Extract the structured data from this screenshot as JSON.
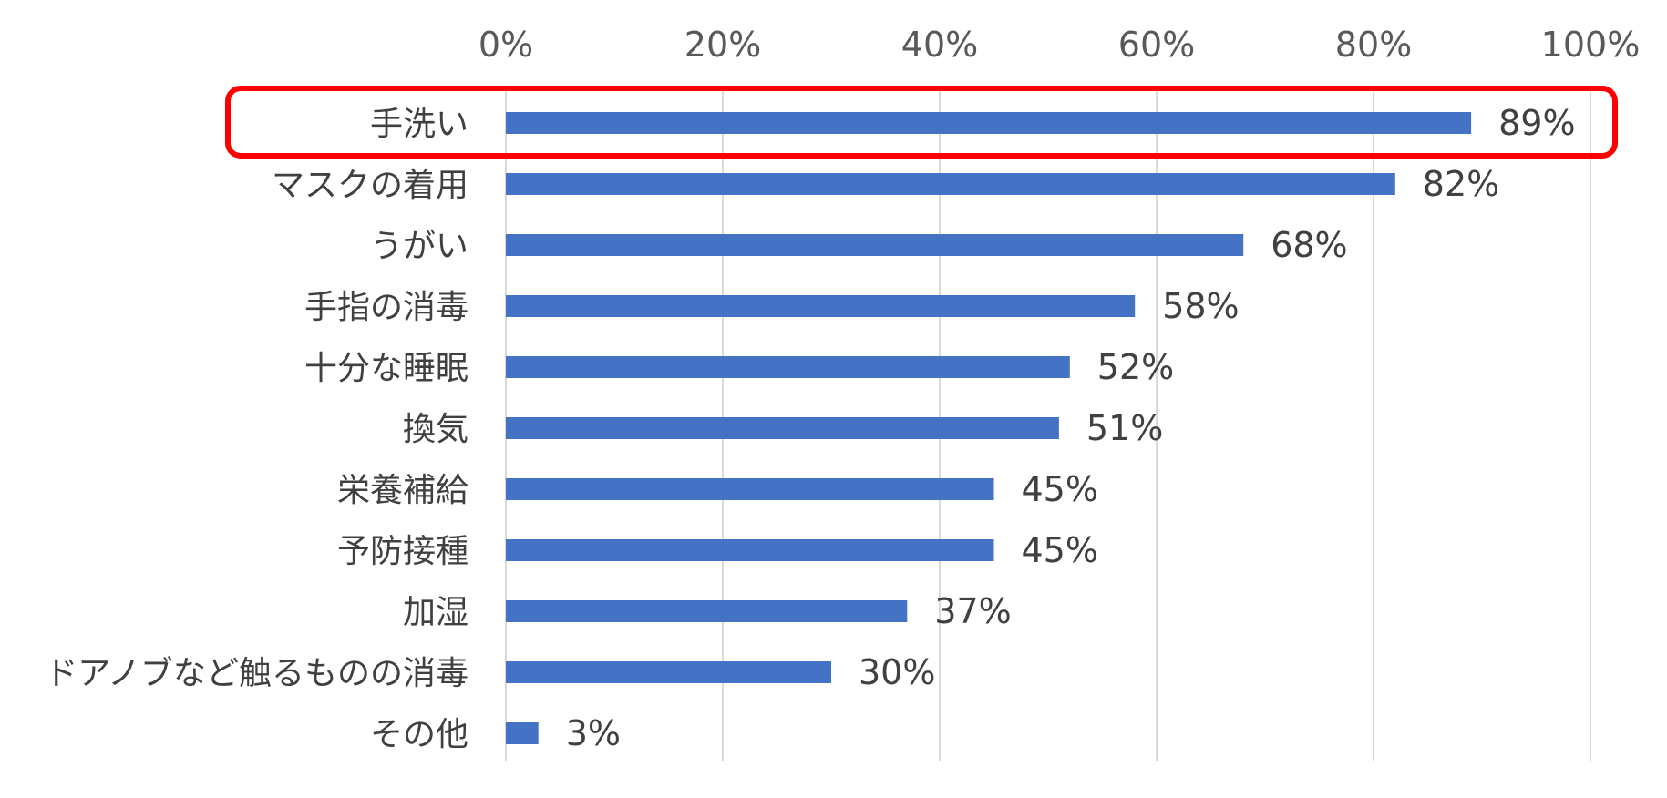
{
  "chart_data": {
    "type": "bar",
    "orientation": "horizontal",
    "categories": [
      "手洗い",
      "マスクの着用",
      "うがい",
      "手指の消毒",
      "十分な睡眠",
      "換気",
      "栄養補給",
      "予防接種",
      "加湿",
      "ドアノブなど触るものの消毒",
      "その他"
    ],
    "values": [
      89,
      82,
      68,
      58,
      52,
      51,
      45,
      45,
      37,
      30,
      3
    ],
    "data_labels": [
      "89%",
      "82%",
      "68%",
      "58%",
      "52%",
      "51%",
      "45%",
      "45%",
      "37%",
      "30%",
      "3%"
    ],
    "x_ticks": [
      "0%",
      "20%",
      "40%",
      "60%",
      "80%",
      "100%"
    ],
    "xlim": [
      0,
      100
    ],
    "x_axis_position": "top",
    "grid": true,
    "title": "",
    "xlabel": "",
    "ylabel": "",
    "highlighted_category": "手洗い",
    "bar_color": "#4472C4",
    "highlight_color": "#FF0000",
    "grid_color": "#D9D9D9"
  }
}
